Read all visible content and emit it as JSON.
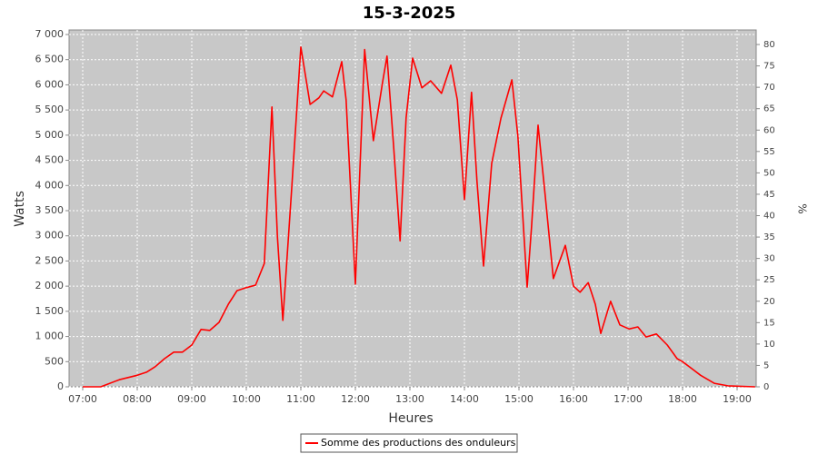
{
  "chart_data": {
    "type": "line",
    "title": "15-3-2025",
    "x_label": "Heures",
    "y_label": "Watts",
    "y2_label": "%",
    "x": [
      7.0,
      7.33,
      7.67,
      8.0,
      8.17,
      8.33,
      8.5,
      8.67,
      8.83,
      9.0,
      9.17,
      9.33,
      9.5,
      9.67,
      9.83,
      10.0,
      10.17,
      10.33,
      10.47,
      10.57,
      10.67,
      10.83,
      11.0,
      11.17,
      11.33,
      11.42,
      11.58,
      11.75,
      11.83,
      12.0,
      12.17,
      12.33,
      12.5,
      12.58,
      12.7,
      12.82,
      12.93,
      13.05,
      13.22,
      13.38,
      13.58,
      13.75,
      13.87,
      14.0,
      14.13,
      14.23,
      14.35,
      14.5,
      14.67,
      14.87,
      14.98,
      15.15,
      15.23,
      15.35,
      15.48,
      15.63,
      15.85,
      16.0,
      16.12,
      16.27,
      16.4,
      16.5,
      16.68,
      16.85,
      17.02,
      17.18,
      17.33,
      17.52,
      17.72,
      17.9,
      18.0,
      18.33,
      18.58,
      18.83,
      19.33
    ],
    "series": [
      {
        "name": "Somme des productions des onduleurs",
        "color": "#ff0000",
        "values": [
          0,
          0,
          140,
          230,
          290,
          400,
          560,
          690,
          690,
          830,
          1140,
          1120,
          1280,
          1640,
          1910,
          1970,
          2020,
          2450,
          5560,
          2990,
          1320,
          3900,
          6750,
          5610,
          5740,
          5880,
          5760,
          6460,
          5700,
          2040,
          6700,
          4890,
          6060,
          6570,
          4800,
          2900,
          5340,
          6530,
          5940,
          6080,
          5830,
          6390,
          5700,
          3720,
          5850,
          4080,
          2400,
          4440,
          5340,
          6100,
          4980,
          1980,
          3170,
          5200,
          3810,
          2150,
          2810,
          2000,
          1880,
          2070,
          1640,
          1060,
          1700,
          1230,
          1150,
          1190,
          990,
          1050,
          830,
          560,
          500,
          230,
          70,
          20,
          0
        ]
      }
    ],
    "xlim": [
      6.75,
      19.35
    ],
    "xticks": [
      {
        "value": 7,
        "label": "07:00"
      },
      {
        "value": 8,
        "label": "08:00"
      },
      {
        "value": 9,
        "label": "09:00"
      },
      {
        "value": 10,
        "label": "10:00"
      },
      {
        "value": 11,
        "label": "11:00"
      },
      {
        "value": 12,
        "label": "12:00"
      },
      {
        "value": 13,
        "label": "13:00"
      },
      {
        "value": 14,
        "label": "14:00"
      },
      {
        "value": 15,
        "label": "15:00"
      },
      {
        "value": 16,
        "label": "16:00"
      },
      {
        "value": 17,
        "label": "17:00"
      },
      {
        "value": 18,
        "label": "18:00"
      },
      {
        "value": 19,
        "label": "19:00"
      }
    ],
    "ylim": [
      0,
      7090
    ],
    "yticks": [
      0,
      500,
      {
        "value": 1000,
        "label": "1 000"
      },
      {
        "value": 1500,
        "label": "1 500"
      },
      {
        "value": 2000,
        "label": "2 000"
      },
      {
        "value": 2500,
        "label": "2 500"
      },
      {
        "value": 3000,
        "label": "3 000"
      },
      {
        "value": 3500,
        "label": "3 500"
      },
      {
        "value": 4000,
        "label": "4 000"
      },
      {
        "value": 4500,
        "label": "4 500"
      },
      {
        "value": 5000,
        "label": "5 000"
      },
      {
        "value": 5500,
        "label": "5 500"
      },
      {
        "value": 6000,
        "label": "6 000"
      },
      {
        "value": 6500,
        "label": "6 500"
      },
      {
        "value": 7000,
        "label": "7 000"
      }
    ],
    "y2lim": [
      0,
      83.4
    ],
    "y2ticks": [
      0,
      5,
      10,
      15,
      20,
      25,
      30,
      35,
      40,
      45,
      50,
      55,
      60,
      65,
      70,
      75,
      80
    ],
    "grid": true
  }
}
